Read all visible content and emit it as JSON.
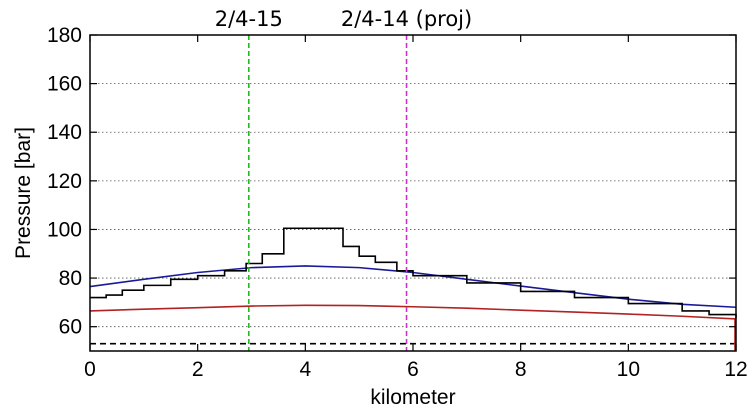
{
  "chart_data": {
    "type": "line",
    "xlabel": "kilometer",
    "ylabel": "Pressure [bar]",
    "xlim": [
      0,
      12
    ],
    "ylim": [
      50,
      180
    ],
    "x_ticks": [
      0,
      2,
      4,
      6,
      8,
      10,
      12
    ],
    "y_ticks": [
      60,
      80,
      100,
      120,
      140,
      160,
      180
    ],
    "grid": "horizontal dotted",
    "vertical_markers": [
      {
        "x": 2.95,
        "label": "2/4-15",
        "color": "#22bb22"
      },
      {
        "x": 5.88,
        "label": "2/4-14 (proj)",
        "color": "#cc33cc"
      }
    ],
    "series": [
      {
        "color": "#1a1a99",
        "style": "solid",
        "x": [
          0,
          1,
          2,
          3,
          4,
          5,
          6,
          7,
          8,
          9,
          10,
          11,
          12
        ],
        "y": [
          76.5,
          79.5,
          82.3,
          84.3,
          85.0,
          84.3,
          82.3,
          79.5,
          76.7,
          74.0,
          71.3,
          69.2,
          68.0
        ]
      },
      {
        "color": "#000000",
        "style": "step",
        "x": [
          0,
          0.3,
          0.6,
          1.0,
          1.5,
          2.0,
          2.5,
          2.9,
          3.2,
          3.6,
          4.4,
          4.7,
          5.0,
          5.3,
          5.7,
          6.0,
          7.0,
          8.0,
          9.0,
          10.0,
          11.0,
          11.5,
          12.0
        ],
        "y": [
          72.0,
          73.0,
          75.0,
          77.0,
          79.5,
          81.0,
          83.0,
          86.0,
          90.0,
          100.5,
          100.5,
          93.0,
          89.0,
          86.5,
          83.0,
          81.0,
          78.0,
          74.5,
          72.0,
          69.5,
          66.5,
          65.0,
          63.5
        ]
      },
      {
        "color": "#b22222",
        "style": "solid",
        "x": [
          0,
          1,
          2,
          3,
          4,
          5,
          6,
          7,
          8,
          9,
          10,
          11,
          12
        ],
        "y": [
          66.5,
          67.2,
          67.8,
          68.5,
          68.8,
          68.7,
          68.2,
          67.6,
          66.8,
          66.0,
          65.2,
          64.3,
          63.2
        ]
      },
      {
        "color": "#000000",
        "style": "dashed",
        "x": [
          0,
          12
        ],
        "y": [
          53.0,
          53.0
        ]
      }
    ]
  }
}
